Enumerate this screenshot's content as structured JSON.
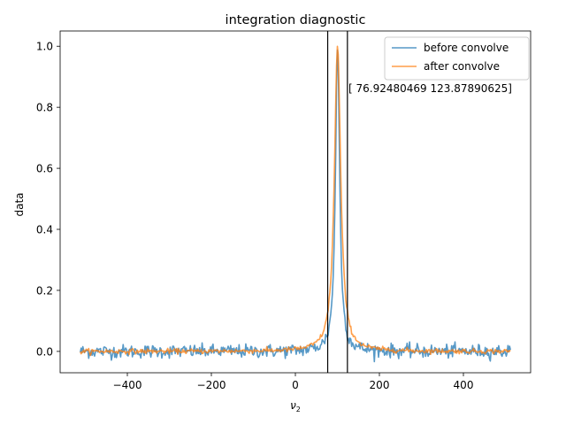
{
  "chart_data": {
    "type": "line",
    "title": "integration diagnostic",
    "xlabel_base": "ν",
    "xlabel_sub": "2",
    "ylabel": "data",
    "xlim": [
      -560,
      560
    ],
    "ylim": [
      -0.07,
      1.05
    ],
    "xticks": [
      -400,
      -200,
      0,
      200,
      400
    ],
    "xtick_labels": [
      "−400",
      "−200",
      "0",
      "200",
      "400"
    ],
    "yticks": [
      0.0,
      0.2,
      0.4,
      0.6,
      0.8,
      1.0
    ],
    "ytick_labels": [
      "0.0",
      "0.2",
      "0.4",
      "0.6",
      "0.8",
      "1.0"
    ],
    "legend_position": "top-right",
    "peak_center": 100.4,
    "x_range": [
      -512,
      512
    ],
    "series": [
      {
        "name": "before convolve",
        "color": "#1f77b4",
        "gamma": 6,
        "noise": 0.011
      },
      {
        "name": "after convolve",
        "color": "#ff7f0e",
        "gamma": 9,
        "noise": 0.004
      }
    ],
    "vlines": [
      76.92480469,
      123.87890625
    ],
    "annotation": "[ 76.92480469 123.87890625]"
  }
}
